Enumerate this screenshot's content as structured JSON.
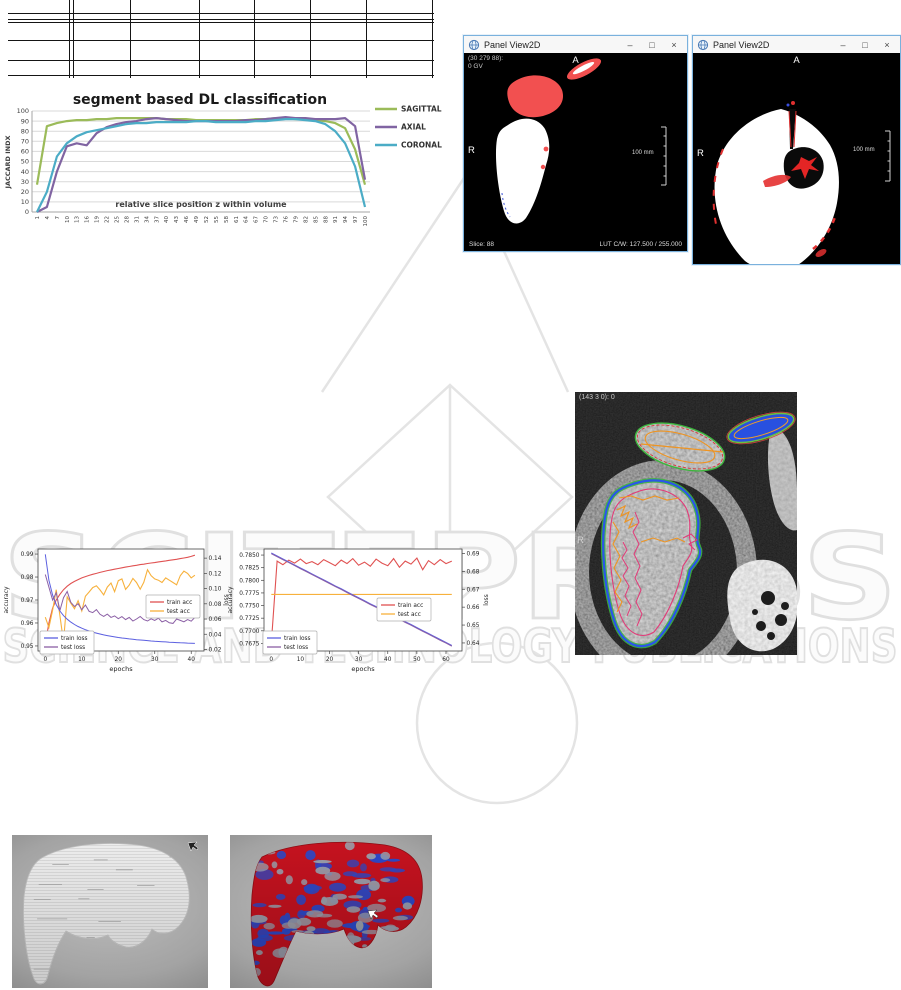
{
  "watermark": {
    "row1": "SCITEPRESS",
    "row2": "SCIENCE AND TECHNOLOGY PUBLICATIONS",
    "color": "#e2e2e2"
  },
  "window_controls": {
    "minimize": "–",
    "maximize": "□",
    "close": "×"
  },
  "panel1": {
    "title": "Panel View2D",
    "icon": "globe-icon",
    "coord_line1": "(30 279 88):",
    "coord_line2": "0 GV",
    "orientation_top": "A",
    "orientation_left": "R",
    "scale_label": "100 mm",
    "status_slice": "Slice: 88",
    "status_lut": "LUT C/W: 127.500 / 255.000"
  },
  "panel2": {
    "title": "Panel View2D",
    "icon": "globe-icon",
    "orientation_top": "A",
    "orientation_left": "R",
    "scale_label": "100 mm"
  },
  "ct_view": {
    "coord_label": "(143 3 0): 0",
    "orientation_left": "R"
  },
  "colors": {
    "window_border": "#7ab1dd",
    "sagittal": "#9BBB59",
    "axial": "#8064A2",
    "coronal": "#4BACC6",
    "train_acc": "#e05252",
    "test_acc": "#f7b13c",
    "train_loss": "#5b5fe0",
    "test_loss": "#8b5fa5"
  },
  "chart_data": [
    {
      "type": "line",
      "title": "segment based DL classification",
      "xlabel": "relative slice position z within volume",
      "ylabel": "JACCARD INDX",
      "ylim": [
        0,
        100
      ],
      "yticks": [
        0,
        10,
        20,
        30,
        40,
        50,
        60,
        70,
        80,
        90,
        100
      ],
      "legend_position": "right",
      "x": [
        1,
        4,
        7,
        10,
        13,
        16,
        19,
        22,
        25,
        28,
        31,
        34,
        37,
        40,
        43,
        46,
        49,
        52,
        55,
        58,
        61,
        64,
        67,
        70,
        73,
        76,
        79,
        82,
        85,
        88,
        91,
        94,
        97,
        100
      ],
      "series": [
        {
          "name": "SAGITTAL",
          "color": "#9BBB59",
          "values": [
            27,
            85,
            88,
            90,
            91,
            91,
            92,
            92,
            93,
            93,
            93,
            93,
            93,
            92,
            92,
            92,
            91,
            91,
            91,
            91,
            91,
            91,
            92,
            92,
            93,
            93,
            92,
            92,
            91,
            90,
            88,
            83,
            62,
            27
          ]
        },
        {
          "name": "AXIAL",
          "color": "#8064A2",
          "values": [
            0,
            5,
            40,
            65,
            68,
            66,
            78,
            84,
            87,
            89,
            90,
            92,
            93,
            92,
            91,
            90,
            90,
            90,
            90,
            90,
            90,
            91,
            91,
            92,
            93,
            94,
            93,
            93,
            92,
            92,
            92,
            93,
            85,
            32
          ]
        },
        {
          "name": "CORONAL",
          "color": "#4BACC6",
          "values": [
            0,
            20,
            55,
            68,
            75,
            79,
            81,
            83,
            85,
            87,
            88,
            88,
            89,
            89,
            89,
            89,
            90,
            90,
            89,
            89,
            89,
            89,
            90,
            90,
            91,
            92,
            92,
            91,
            90,
            87,
            80,
            68,
            45,
            5
          ]
        }
      ]
    },
    {
      "type": "line",
      "xlabel": "epochs",
      "ylabel_left": "accuracy",
      "ylabel_right": "loss",
      "xlim": [
        -2,
        43.5
      ],
      "xticks": [
        0,
        10,
        20,
        30,
        40
      ],
      "ylim_left": [
        0.9478,
        0.9922
      ],
      "yticks_left": [
        0.95,
        0.96,
        0.97,
        0.98,
        0.99
      ],
      "ylim_right": [
        0.018,
        0.152
      ],
      "yticks_right": [
        0.02,
        0.04,
        0.06,
        0.08,
        0.1,
        0.12,
        0.14
      ],
      "x": [
        0,
        1,
        2,
        3,
        4,
        5,
        6,
        7,
        8,
        9,
        10,
        11,
        12,
        13,
        14,
        15,
        16,
        17,
        18,
        19,
        20,
        21,
        22,
        23,
        24,
        25,
        26,
        27,
        28,
        29,
        30,
        31,
        32,
        33,
        34,
        35,
        36,
        37,
        38,
        39,
        40,
        41
      ],
      "series": [
        {
          "name": "train acc",
          "axis": "l",
          "color": "#e05252",
          "values": [
            0.951,
            0.96,
            0.9665,
            0.97,
            0.9725,
            0.9745,
            0.976,
            0.9772,
            0.9781,
            0.9789,
            0.9796,
            0.9802,
            0.9807,
            0.9812,
            0.9816,
            0.982,
            0.9824,
            0.9828,
            0.9831,
            0.9834,
            0.9837,
            0.984,
            0.9843,
            0.9846,
            0.9849,
            0.9851,
            0.9854,
            0.9856,
            0.9859,
            0.9861,
            0.9863,
            0.9866,
            0.9868,
            0.987,
            0.9873,
            0.9875,
            0.9877,
            0.988,
            0.9883,
            0.9886,
            0.989,
            0.9895
          ]
        },
        {
          "name": "test acc",
          "axis": "l",
          "color": "#f7b13c",
          "values": [
            0.9625,
            0.958,
            0.9655,
            0.9745,
            0.9632,
            0.9518,
            0.9714,
            0.9686,
            0.9662,
            0.9697,
            0.9652,
            0.9716,
            0.9735,
            0.9754,
            0.9762,
            0.9744,
            0.9722,
            0.9756,
            0.9774,
            0.9736,
            0.9784,
            0.9792,
            0.9746,
            0.9765,
            0.9794,
            0.9776,
            0.9747,
            0.9777,
            0.9832,
            0.9806,
            0.9792,
            0.9786,
            0.9776,
            0.9796,
            0.9786,
            0.9776,
            0.9766,
            0.9806,
            0.9826,
            0.9816,
            0.9796,
            0.9808
          ]
        },
        {
          "name": "train loss",
          "axis": "r",
          "color": "#5b5fe0",
          "values": [
            0.145,
            0.111,
            0.0915,
            0.079,
            0.0705,
            0.0645,
            0.0598,
            0.056,
            0.0528,
            0.0502,
            0.048,
            0.046,
            0.0443,
            0.0428,
            0.0415,
            0.0403,
            0.0392,
            0.0382,
            0.0373,
            0.0365,
            0.0358,
            0.0351,
            0.0345,
            0.0339,
            0.0334,
            0.0329,
            0.0324,
            0.032,
            0.0316,
            0.0312,
            0.0308,
            0.0305,
            0.0302,
            0.0299,
            0.0296,
            0.0293,
            0.0291,
            0.0288,
            0.0286,
            0.0284,
            0.0282,
            0.028
          ]
        },
        {
          "name": "test loss",
          "axis": "r",
          "color": "#8b5fa5",
          "values": [
            0.1185,
            0.102,
            0.085,
            0.0945,
            0.0712,
            0.088,
            0.0962,
            0.082,
            0.0765,
            0.0802,
            0.0722,
            0.0784,
            0.0701,
            0.0685,
            0.0724,
            0.0662,
            0.0634,
            0.0665,
            0.0622,
            0.0641,
            0.0604,
            0.0632,
            0.0592,
            0.0621,
            0.0574,
            0.0601,
            0.0633,
            0.0592,
            0.0574,
            0.0603,
            0.0582,
            0.0611,
            0.0562,
            0.0582,
            0.0551,
            0.0543,
            0.0601,
            0.0582,
            0.0563,
            0.0592,
            0.0571,
            0.0621
          ]
        }
      ]
    },
    {
      "type": "line",
      "xlabel": "epochs",
      "ylabel_left": "accuracy",
      "ylabel_right": "loss",
      "xlim": [
        -2.5,
        65.5
      ],
      "xticks": [
        0,
        10,
        20,
        30,
        40,
        50,
        60
      ],
      "ylim_left": [
        0.766,
        0.7862
      ],
      "yticks_left": [
        0.7675,
        0.77,
        0.7725,
        0.775,
        0.7775,
        0.78,
        0.7825,
        0.785
      ],
      "ylim_right": [
        0.6355,
        0.6925
      ],
      "yticks_right": [
        0.64,
        0.65,
        0.66,
        0.67,
        0.68,
        0.69
      ],
      "x": [
        0,
        2,
        4,
        6,
        8,
        10,
        12,
        14,
        16,
        18,
        20,
        22,
        24,
        26,
        28,
        30,
        32,
        34,
        36,
        38,
        40,
        42,
        44,
        46,
        48,
        50,
        52,
        54,
        56,
        58,
        60,
        62
      ],
      "series": [
        {
          "name": "train acc",
          "axis": "l",
          "color": "#e05252",
          "values": [
            0.7675,
            0.7838,
            0.7831,
            0.784,
            0.7834,
            0.7842,
            0.7833,
            0.7837,
            0.7831,
            0.7841,
            0.7835,
            0.7829,
            0.784,
            0.7833,
            0.7843,
            0.783,
            0.7836,
            0.7828,
            0.7842,
            0.7834,
            0.7829,
            0.7843,
            0.7826,
            0.7838,
            0.7832,
            0.7844,
            0.7821,
            0.7839,
            0.7831,
            0.7841,
            0.7833,
            0.7838
          ]
        },
        {
          "name": "test acc",
          "axis": "l",
          "color": "#f7b13c",
          "values": [
            0.7772,
            0.7772,
            0.7772,
            0.7772,
            0.7772,
            0.7772,
            0.7772,
            0.7772,
            0.7772,
            0.7772,
            0.7772,
            0.7772,
            0.7772,
            0.7772,
            0.7772,
            0.7772,
            0.7772,
            0.7772,
            0.7772,
            0.7772,
            0.7772,
            0.7772,
            0.7772,
            0.7772,
            0.7772,
            0.7772,
            0.7772,
            0.7772,
            0.7772,
            0.7772,
            0.7772,
            0.7772
          ]
        },
        {
          "name": "train loss",
          "axis": "r",
          "color": "#5b5fe0",
          "values": [
            0.6903,
            0.6886,
            0.6869,
            0.6853,
            0.6836,
            0.6819,
            0.6803,
            0.6786,
            0.6769,
            0.6753,
            0.6736,
            0.6719,
            0.6703,
            0.6686,
            0.6669,
            0.6653,
            0.6636,
            0.6619,
            0.6603,
            0.6586,
            0.6569,
            0.6553,
            0.6536,
            0.6519,
            0.6503,
            0.6486,
            0.6469,
            0.6453,
            0.6436,
            0.6419,
            0.6403,
            0.6386
          ]
        },
        {
          "name": "test loss",
          "axis": "r",
          "color": "#8b5fa5",
          "values": [
            0.6899,
            0.6882,
            0.6865,
            0.6849,
            0.6832,
            0.6815,
            0.6799,
            0.6782,
            0.6765,
            0.6749,
            0.6732,
            0.6715,
            0.6699,
            0.6682,
            0.6665,
            0.6649,
            0.6632,
            0.6615,
            0.6599,
            0.6582,
            0.6565,
            0.6549,
            0.6532,
            0.6515,
            0.6499,
            0.6482,
            0.6465,
            0.6449,
            0.6432,
            0.6415,
            0.6399,
            0.6382
          ]
        }
      ]
    }
  ]
}
